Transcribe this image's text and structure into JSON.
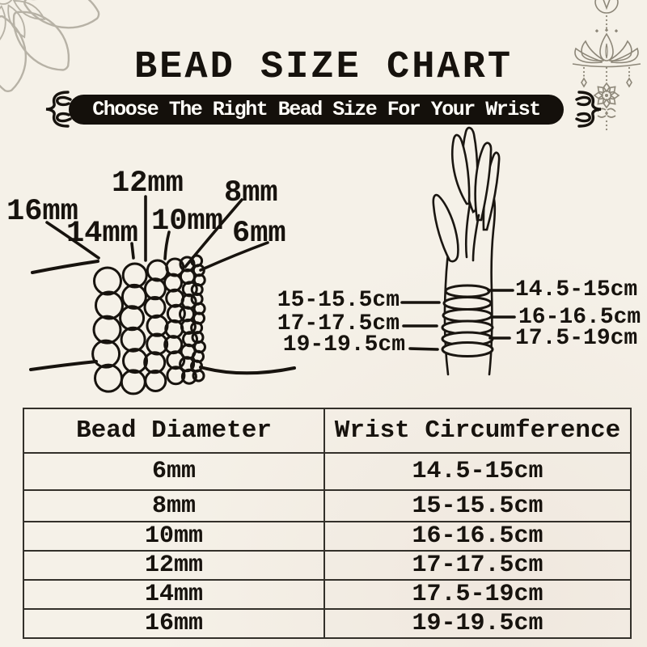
{
  "title": "BEAD SIZE CHART",
  "banner": "Choose The Right Bead Size For Your Wrist",
  "bracelet_diagram": {
    "bead_sizes": [
      "16mm",
      "14mm",
      "12mm",
      "10mm",
      "8mm",
      "6mm"
    ]
  },
  "hand_diagram": {
    "left_labels": [
      "15-15.5cm",
      "17-17.5cm",
      "19-19.5cm"
    ],
    "right_labels": [
      "14.5-15cm",
      "16-16.5cm",
      "17.5-19cm"
    ]
  },
  "size_table": {
    "headers": [
      "Bead Diameter",
      "Wrist Circumference"
    ],
    "rows": [
      [
        "6mm",
        "14.5-15cm"
      ],
      [
        "8mm",
        "15-15.5cm"
      ],
      [
        "10mm",
        "16-16.5cm"
      ],
      [
        "12mm",
        "17-17.5cm"
      ],
      [
        "14mm",
        "17.5-19cm"
      ],
      [
        "16mm",
        "19-19.5cm"
      ]
    ]
  },
  "icons": {
    "top_left": "mandala-flower-icon",
    "top_right": "lotus-charms-icon",
    "banner_left": "flourish-icon",
    "banner_right": "flourish-icon"
  },
  "colors": {
    "background": "#f5f1e8",
    "ink": "#17130e",
    "banner_bg": "#14100b",
    "banner_text": "#fffdf8",
    "decor_gray": "#b7b2a6",
    "decor_brown": "#8d8779",
    "table_border": "#33302a"
  }
}
